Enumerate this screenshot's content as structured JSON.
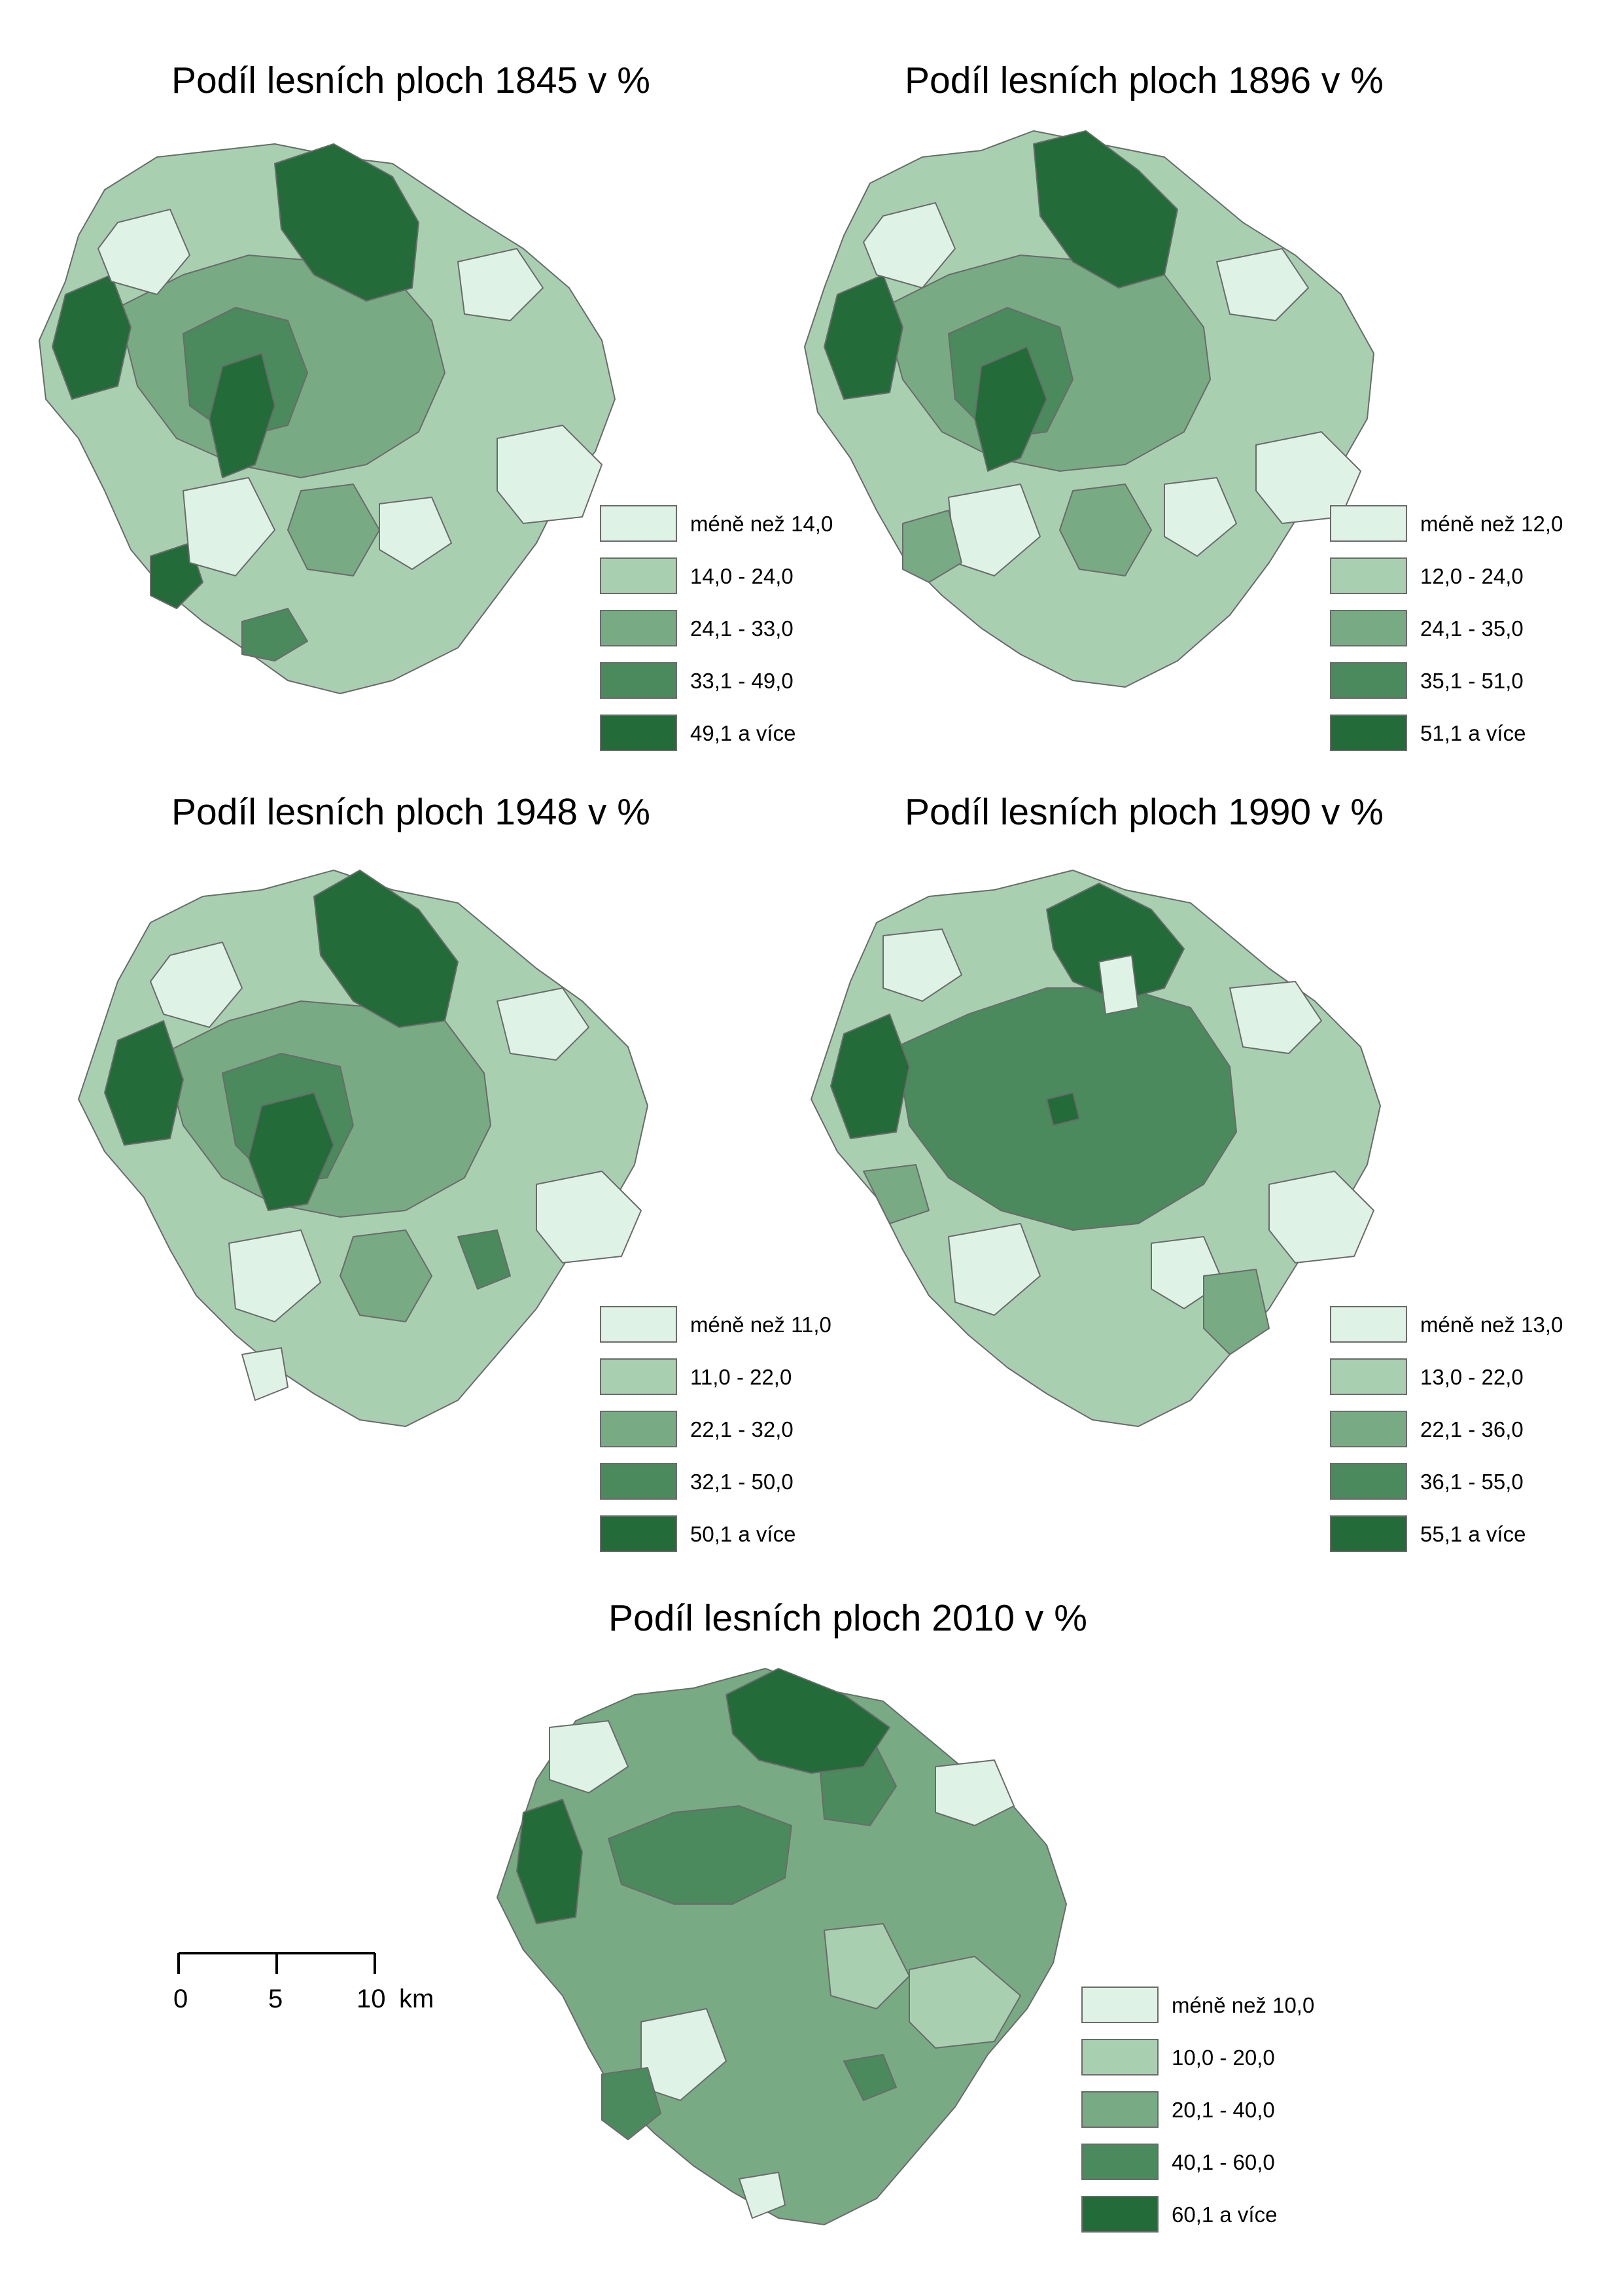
{
  "maps": [
    {
      "title": "Podíl lesních ploch 1845 v %",
      "legend": [
        "méně než 14,0",
        "14,0 - 24,0",
        "24,1 - 33,0",
        "33,1 - 49,0",
        "49,1 a více"
      ]
    },
    {
      "title": "Podíl lesních ploch 1896 v %",
      "legend": [
        "méně než 12,0",
        "12,0 - 24,0",
        "24,1 - 35,0",
        "35,1 - 51,0",
        "51,1 a více"
      ]
    },
    {
      "title": "Podíl lesních ploch 1948 v %",
      "legend": [
        "méně než 11,0",
        "11,0 - 22,0",
        "22,1 - 32,0",
        "32,1 - 50,0",
        "50,1 a více"
      ]
    },
    {
      "title": "Podíl lesních ploch 1990 v %",
      "legend": [
        "méně než 13,0",
        "13,0 - 22,0",
        "22,1 - 36,0",
        "36,1 - 55,0",
        "55,1 a více"
      ]
    },
    {
      "title": "Podíl lesních ploch 2010 v %",
      "legend": [
        "méně než 10,0",
        "10,0 - 20,0",
        "20,1 - 40,0",
        "40,1 - 60,0",
        "60,1 a více"
      ]
    }
  ],
  "colors": [
    "#def3e6",
    "#a8d0b0",
    "#78ab83",
    "#4a8a5c",
    "#246b3a"
  ],
  "scalebar": {
    "labels": [
      "0",
      "5",
      "10",
      "km"
    ]
  }
}
